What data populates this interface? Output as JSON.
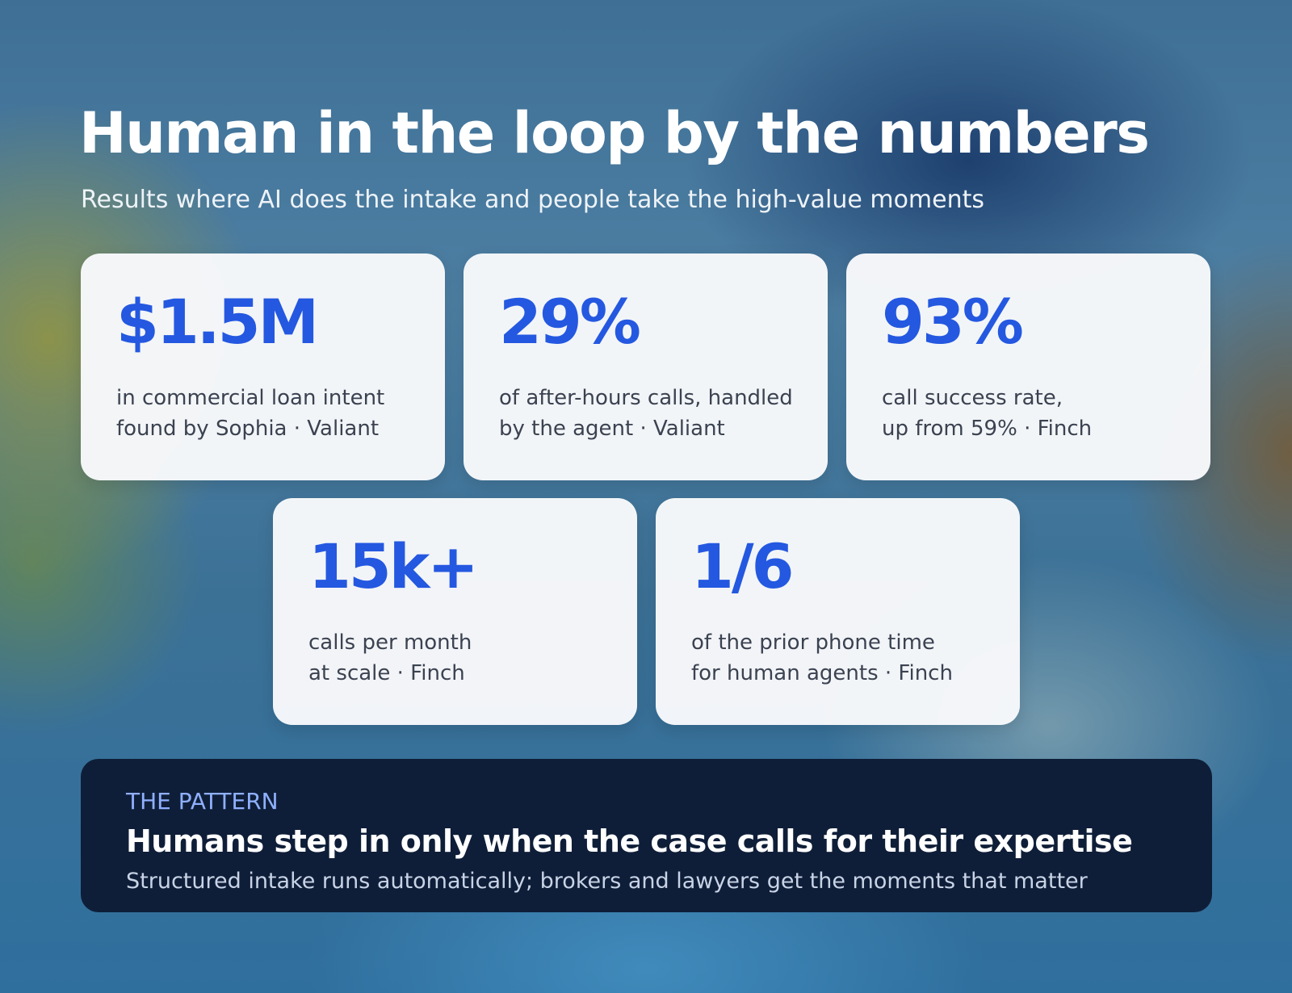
{
  "header": {
    "title": "Human in the loop by the numbers",
    "subtitle": "Results where AI does the intake and people take the high-value moments"
  },
  "stats": [
    {
      "value": "$1.5M",
      "lines": [
        "in commercial loan intent",
        "found by Sophia · Valiant"
      ]
    },
    {
      "value": "29%",
      "lines": [
        "of after-hours calls, handled",
        "by the agent · Valiant"
      ]
    },
    {
      "value": "93%",
      "lines": [
        "call success rate,",
        "up from 59% · Finch"
      ]
    },
    {
      "value": "15k+",
      "lines": [
        "calls per month",
        "at scale · Finch"
      ]
    },
    {
      "value": "1/6",
      "lines": [
        "of the prior phone time",
        "for human agents · Finch"
      ]
    }
  ],
  "pattern": {
    "label": "THE PATTERN",
    "title": "Humans step in only when the case calls for their expertise",
    "text": "Structured intake runs automatically; brokers and lawyers get the moments that matter"
  }
}
